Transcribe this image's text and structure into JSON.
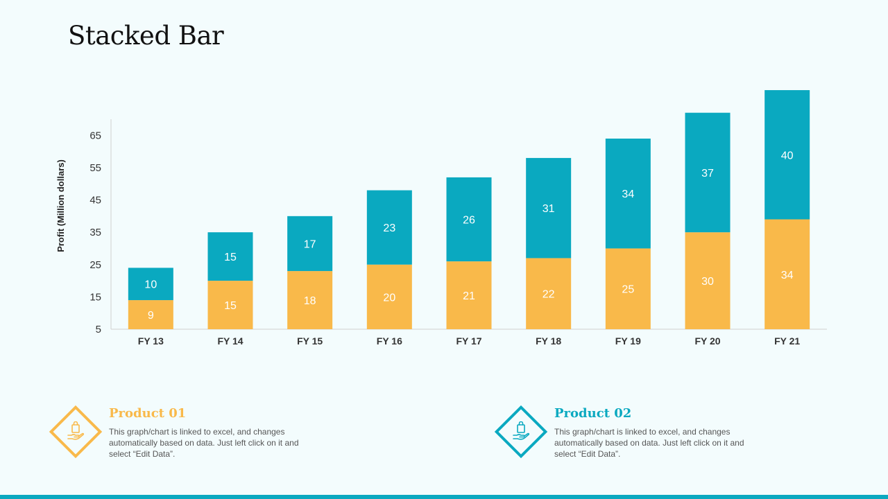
{
  "page": {
    "title": "Stacked Bar"
  },
  "chart_data": {
    "type": "bar",
    "stacked": true,
    "title": "",
    "xlabel": "",
    "ylabel": "Profit  (Million dollars)",
    "ylim": [
      5,
      70
    ],
    "yticks": [
      5,
      15,
      25,
      35,
      45,
      55,
      65
    ],
    "categories": [
      "FY 13",
      "FY 14",
      "FY 15",
      "FY 16",
      "FY 17",
      "FY 18",
      "FY 19",
      "FY 20",
      "FY 21"
    ],
    "series": [
      {
        "values": [
          9,
          15,
          18,
          20,
          21,
          22,
          25,
          30,
          34
        ],
        "color": "#f9b94a"
      },
      {
        "values": [
          10,
          15,
          17,
          23,
          26,
          31,
          34,
          37,
          40
        ],
        "color": "#0aa9c0"
      }
    ],
    "grid": false
  },
  "legend": [
    {
      "name": "Product 01",
      "description": "This graph/chart is linked to excel, and changes automatically based on data. Just left click on it and select “Edit Data”.",
      "color": "#f9b94a",
      "icon": "hand-holding-bag-icon"
    },
    {
      "name": "Product 02",
      "description": "This graph/chart is linked to excel, and changes automatically based on data. Just left click on it and select “Edit Data”.",
      "color": "#0aa9c0",
      "icon": "hand-holding-bag-icon"
    }
  ],
  "colors": {
    "accent": "#0aa9c0",
    "secondary": "#f9b94a",
    "background": "#f3fcfd"
  }
}
